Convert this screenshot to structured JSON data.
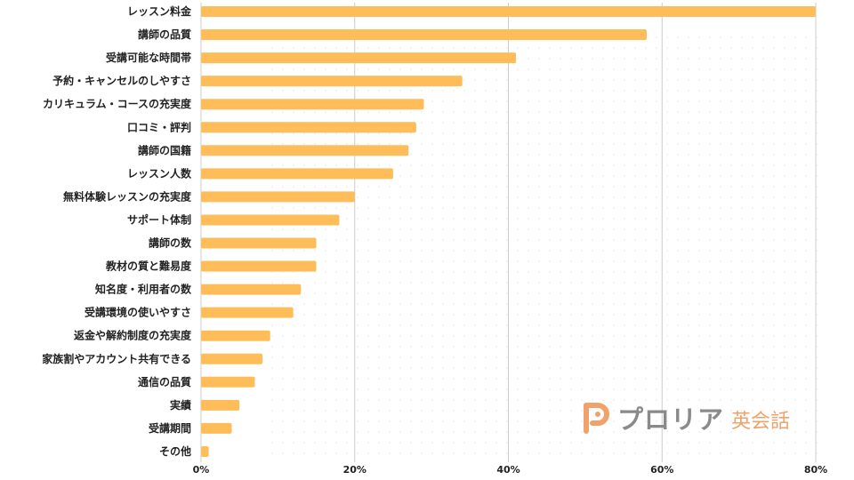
{
  "chart_data": {
    "type": "bar",
    "orientation": "horizontal",
    "categories": [
      "レッスン料金",
      "講師の品質",
      "受講可能な時間帯",
      "予約・キャンセルのしやすさ",
      "カリキュラム・コースの充実度",
      "口コミ・評判",
      "講師の国籍",
      "レッスン人数",
      "無料体験レッスンの充実度",
      "サポート体制",
      "講師の数",
      "教材の質と難易度",
      "知名度・利用者の数",
      "受講環境の使いやすさ",
      "返金や解約制度の充実度",
      "家族割やアカウント共有できる",
      "通信の品質",
      "実績",
      "受講期間",
      "その他"
    ],
    "values": [
      80,
      58,
      41,
      34,
      29,
      28,
      27,
      25,
      20,
      18,
      15,
      15,
      13,
      12,
      9,
      8,
      7,
      5,
      4,
      1
    ],
    "xlim": [
      0,
      80
    ],
    "ticks": [
      0,
      20,
      40,
      60,
      80
    ],
    "tick_labels": [
      "0%",
      "20%",
      "40%",
      "60%",
      "80%"
    ],
    "grid": true,
    "bar_color": "#ffbd59",
    "grid_color": "#cccccc"
  },
  "watermark": {
    "name": "プロリア",
    "sub": "英会話",
    "icon": "brand-p-icon",
    "name_color": "#8a8a8a",
    "accent_color": "#f0a26a"
  }
}
